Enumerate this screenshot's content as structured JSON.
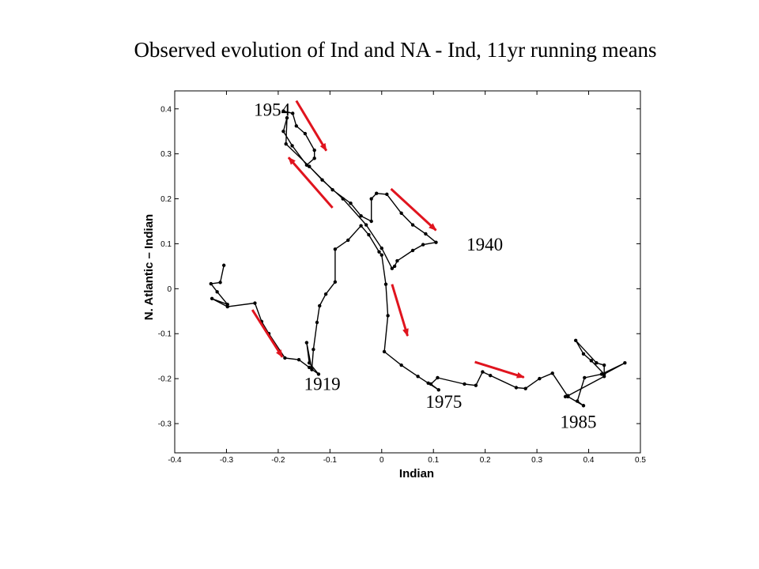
{
  "title": "Observed evolution of Ind and NA - Ind, 11yr running means",
  "chart_data": {
    "type": "line",
    "xlabel": "Indian",
    "ylabel": "N. Atlantic – Indian",
    "xlim": [
      -0.4,
      0.5
    ],
    "ylim": [
      -0.365,
      0.44
    ],
    "xticks": [
      "-0.4",
      "-0.3",
      "-0.2",
      "-0.1",
      "0",
      "0.1",
      "0.2",
      "0.3",
      "0.4",
      "0.5"
    ],
    "xtick_values": [
      -0.4,
      -0.3,
      -0.2,
      -0.1,
      0,
      0.1,
      0.2,
      0.3,
      0.4,
      0.5
    ],
    "yticks": [
      "-0.3",
      "-0.2",
      "-0.1",
      "0",
      "0.1",
      "0.2",
      "0.3",
      "0.4"
    ],
    "ytick_values": [
      -0.3,
      -0.2,
      -0.1,
      0,
      0.1,
      0.2,
      0.3,
      0.4
    ],
    "grid": false,
    "series": [
      {
        "line_color": "#000000",
        "points": [
          [
            -0.305,
            0.052
          ],
          [
            -0.312,
            0.014
          ],
          [
            -0.33,
            0.011
          ],
          [
            -0.318,
            -0.007
          ],
          [
            -0.298,
            -0.035
          ],
          [
            -0.328,
            -0.022
          ],
          [
            -0.298,
            -0.04
          ],
          [
            -0.245,
            -0.032
          ],
          [
            -0.232,
            -0.073
          ],
          [
            -0.218,
            -0.1
          ],
          [
            -0.187,
            -0.154
          ],
          [
            -0.16,
            -0.158
          ],
          [
            -0.14,
            -0.175
          ],
          [
            -0.122,
            -0.19
          ],
          [
            -0.14,
            -0.165
          ],
          [
            -0.145,
            -0.12
          ],
          [
            -0.135,
            -0.18
          ],
          [
            -0.132,
            -0.135
          ],
          [
            -0.125,
            -0.075
          ],
          [
            -0.12,
            -0.038
          ],
          [
            -0.108,
            -0.012
          ],
          [
            -0.09,
            0.015
          ],
          [
            -0.09,
            0.088
          ],
          [
            -0.065,
            0.108
          ],
          [
            -0.04,
            0.14
          ],
          [
            -0.025,
            0.12
          ],
          [
            -0.005,
            0.082
          ],
          [
            0.0,
            0.075
          ],
          [
            0.008,
            0.01
          ],
          [
            0.012,
            -0.06
          ],
          [
            0.005,
            -0.14
          ],
          [
            0.038,
            -0.17
          ],
          [
            0.07,
            -0.195
          ],
          [
            0.09,
            -0.21
          ],
          [
            0.11,
            -0.225
          ],
          [
            0.095,
            -0.212
          ],
          [
            0.108,
            -0.198
          ],
          [
            0.16,
            -0.212
          ],
          [
            0.182,
            -0.215
          ],
          [
            0.195,
            -0.185
          ],
          [
            0.21,
            -0.193
          ],
          [
            0.26,
            -0.22
          ],
          [
            0.278,
            -0.222
          ],
          [
            0.305,
            -0.2
          ],
          [
            0.33,
            -0.188
          ],
          [
            0.36,
            -0.24
          ],
          [
            0.39,
            -0.26
          ],
          [
            0.378,
            -0.25
          ],
          [
            0.392,
            -0.198
          ],
          [
            0.425,
            -0.19
          ],
          [
            0.47,
            -0.165
          ],
          [
            0.43,
            -0.19
          ],
          [
            0.405,
            -0.16
          ],
          [
            0.39,
            -0.145
          ],
          [
            0.375,
            -0.115
          ],
          [
            0.415,
            -0.165
          ],
          [
            0.43,
            -0.17
          ],
          [
            0.43,
            -0.195
          ],
          [
            0.36,
            -0.238
          ],
          [
            0.355,
            -0.24
          ]
        ]
      },
      {
        "line_color": "#000000",
        "points": [
          [
            -0.19,
            0.395
          ],
          [
            -0.172,
            0.39
          ],
          [
            -0.165,
            0.362
          ],
          [
            -0.148,
            0.345
          ],
          [
            -0.13,
            0.308
          ],
          [
            -0.13,
            0.29
          ],
          [
            -0.145,
            0.275
          ],
          [
            -0.173,
            0.318
          ],
          [
            -0.19,
            0.35
          ],
          [
            -0.183,
            0.38
          ],
          [
            -0.185,
            0.322
          ],
          [
            -0.14,
            0.272
          ],
          [
            -0.095,
            0.22
          ],
          [
            -0.06,
            0.19
          ],
          [
            -0.04,
            0.162
          ],
          [
            -0.02,
            0.15
          ],
          [
            -0.02,
            0.2
          ],
          [
            -0.01,
            0.212
          ],
          [
            0.01,
            0.21
          ],
          [
            0.038,
            0.168
          ],
          [
            0.06,
            0.142
          ],
          [
            0.085,
            0.122
          ],
          [
            0.105,
            0.103
          ],
          [
            0.08,
            0.098
          ],
          [
            0.06,
            0.085
          ],
          [
            0.03,
            0.062
          ],
          [
            0.025,
            0.05
          ],
          [
            0.02,
            0.045
          ],
          [
            0.0,
            0.09
          ],
          [
            -0.03,
            0.142
          ],
          [
            -0.075,
            0.2
          ],
          [
            -0.115,
            0.242
          ],
          [
            -0.14,
            0.272
          ]
        ]
      }
    ],
    "annotations": [
      {
        "text": "1954",
        "x": -0.247,
        "y": 0.385
      },
      {
        "text": "1940",
        "x": 0.164,
        "y": 0.085
      },
      {
        "text": "1919",
        "x": -0.15,
        "y": -0.225
      },
      {
        "text": "1975",
        "x": 0.085,
        "y": -0.265
      },
      {
        "text": "1985",
        "x": 0.345,
        "y": -0.31
      }
    ],
    "arrows": [
      {
        "from": [
          -0.165,
          0.418
        ],
        "to": [
          -0.107,
          0.307
        ]
      },
      {
        "from": [
          -0.095,
          0.18
        ],
        "to": [
          -0.18,
          0.292
        ]
      },
      {
        "from": [
          0.018,
          0.222
        ],
        "to": [
          0.105,
          0.13
        ]
      },
      {
        "from": [
          0.02,
          0.01
        ],
        "to": [
          0.05,
          -0.105
        ]
      },
      {
        "from": [
          0.18,
          -0.163
        ],
        "to": [
          0.275,
          -0.197
        ]
      },
      {
        "from": [
          -0.25,
          -0.047
        ],
        "to": [
          -0.192,
          -0.152
        ]
      }
    ],
    "arrow_color": "#e0141e"
  }
}
